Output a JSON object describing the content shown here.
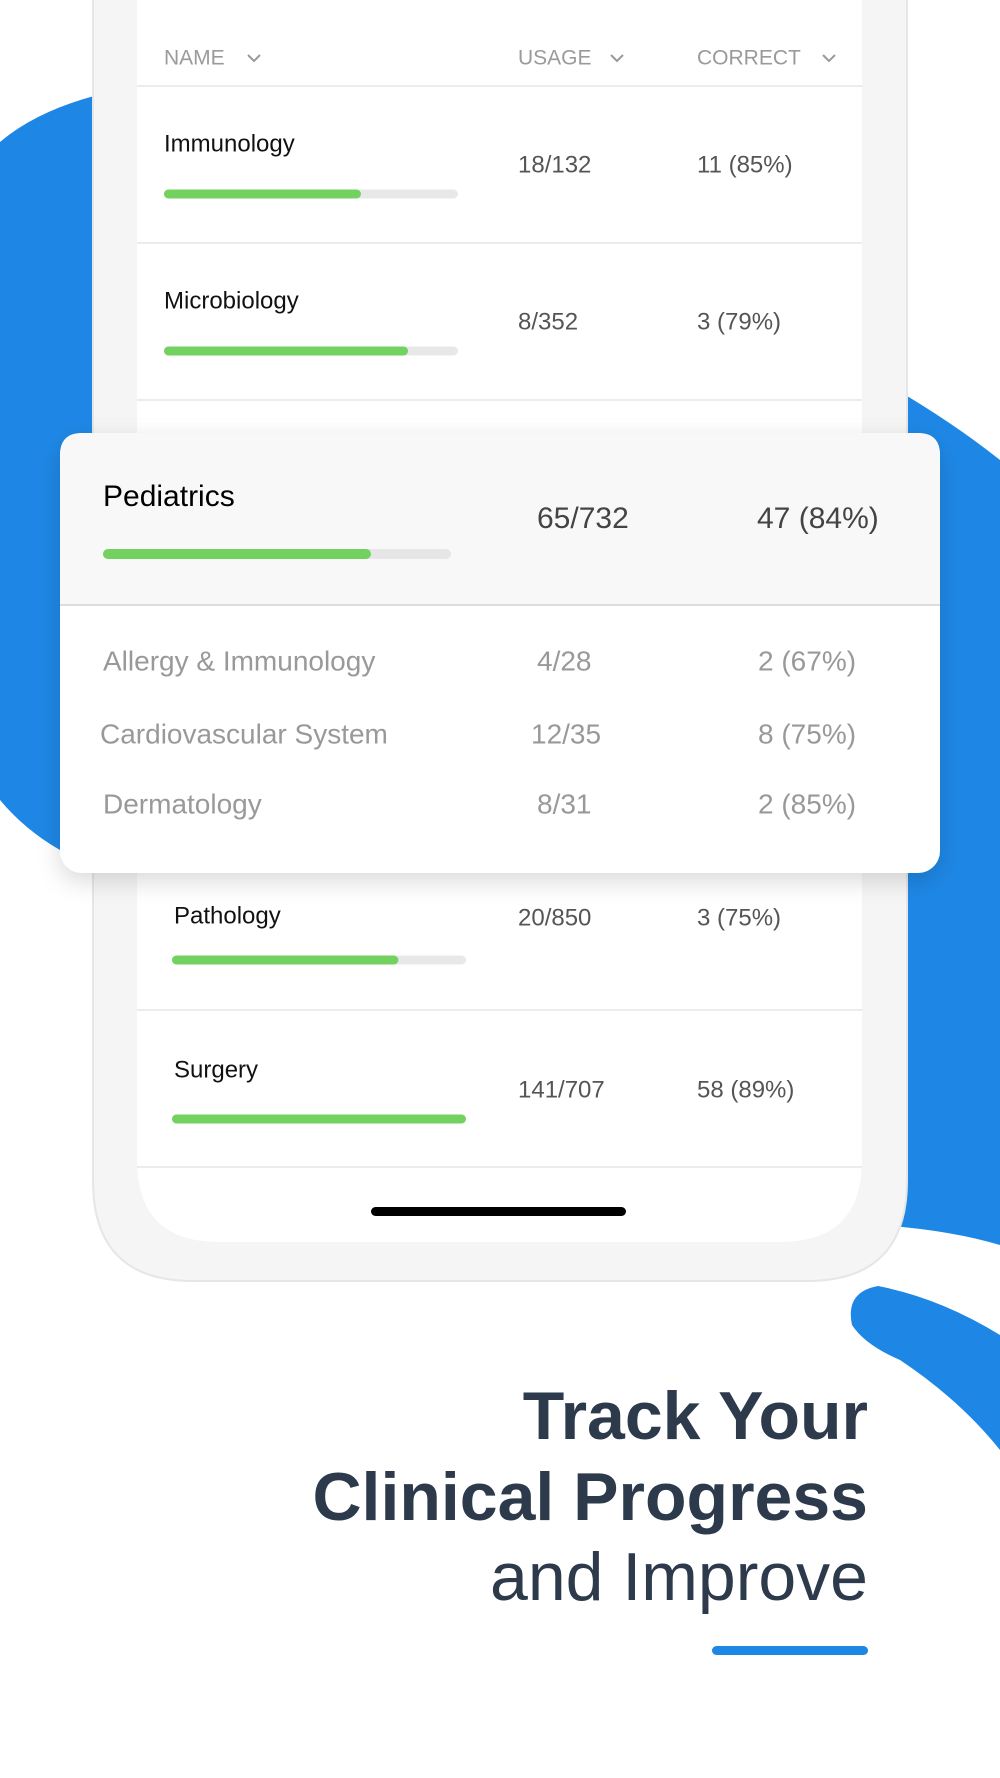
{
  "header": {
    "columns": [
      "NAME",
      "USAGE",
      "CORRECT"
    ]
  },
  "rows": [
    {
      "name": "Immunology",
      "usage": "18/132",
      "correct": "11 (85%)",
      "progress": 67
    },
    {
      "name": "Microbiology",
      "usage": "8/352",
      "correct": "3 (79%)",
      "progress": 83
    },
    {
      "name": "Pathology",
      "usage": "20/850",
      "correct": "3 (75%)",
      "progress": 77
    },
    {
      "name": "Surgery",
      "usage": "141/707",
      "correct": "58 (89%)",
      "progress": 100
    }
  ],
  "expanded": {
    "name": "Pediatrics",
    "usage": "65/732",
    "correct": "47 (84%)",
    "progress": 77,
    "subrows": [
      {
        "name": "Allergy & Immunology",
        "usage": "4/28",
        "correct": "2 (67%)"
      },
      {
        "name": "Cardiovascular System",
        "usage": "12/35",
        "correct": "8 (75%)"
      },
      {
        "name": "Dermatology",
        "usage": "8/31",
        "correct": "2 (85%)"
      }
    ]
  },
  "headline": {
    "lines": [
      "Track Your",
      "Clinical Progress",
      "and Improve"
    ]
  }
}
